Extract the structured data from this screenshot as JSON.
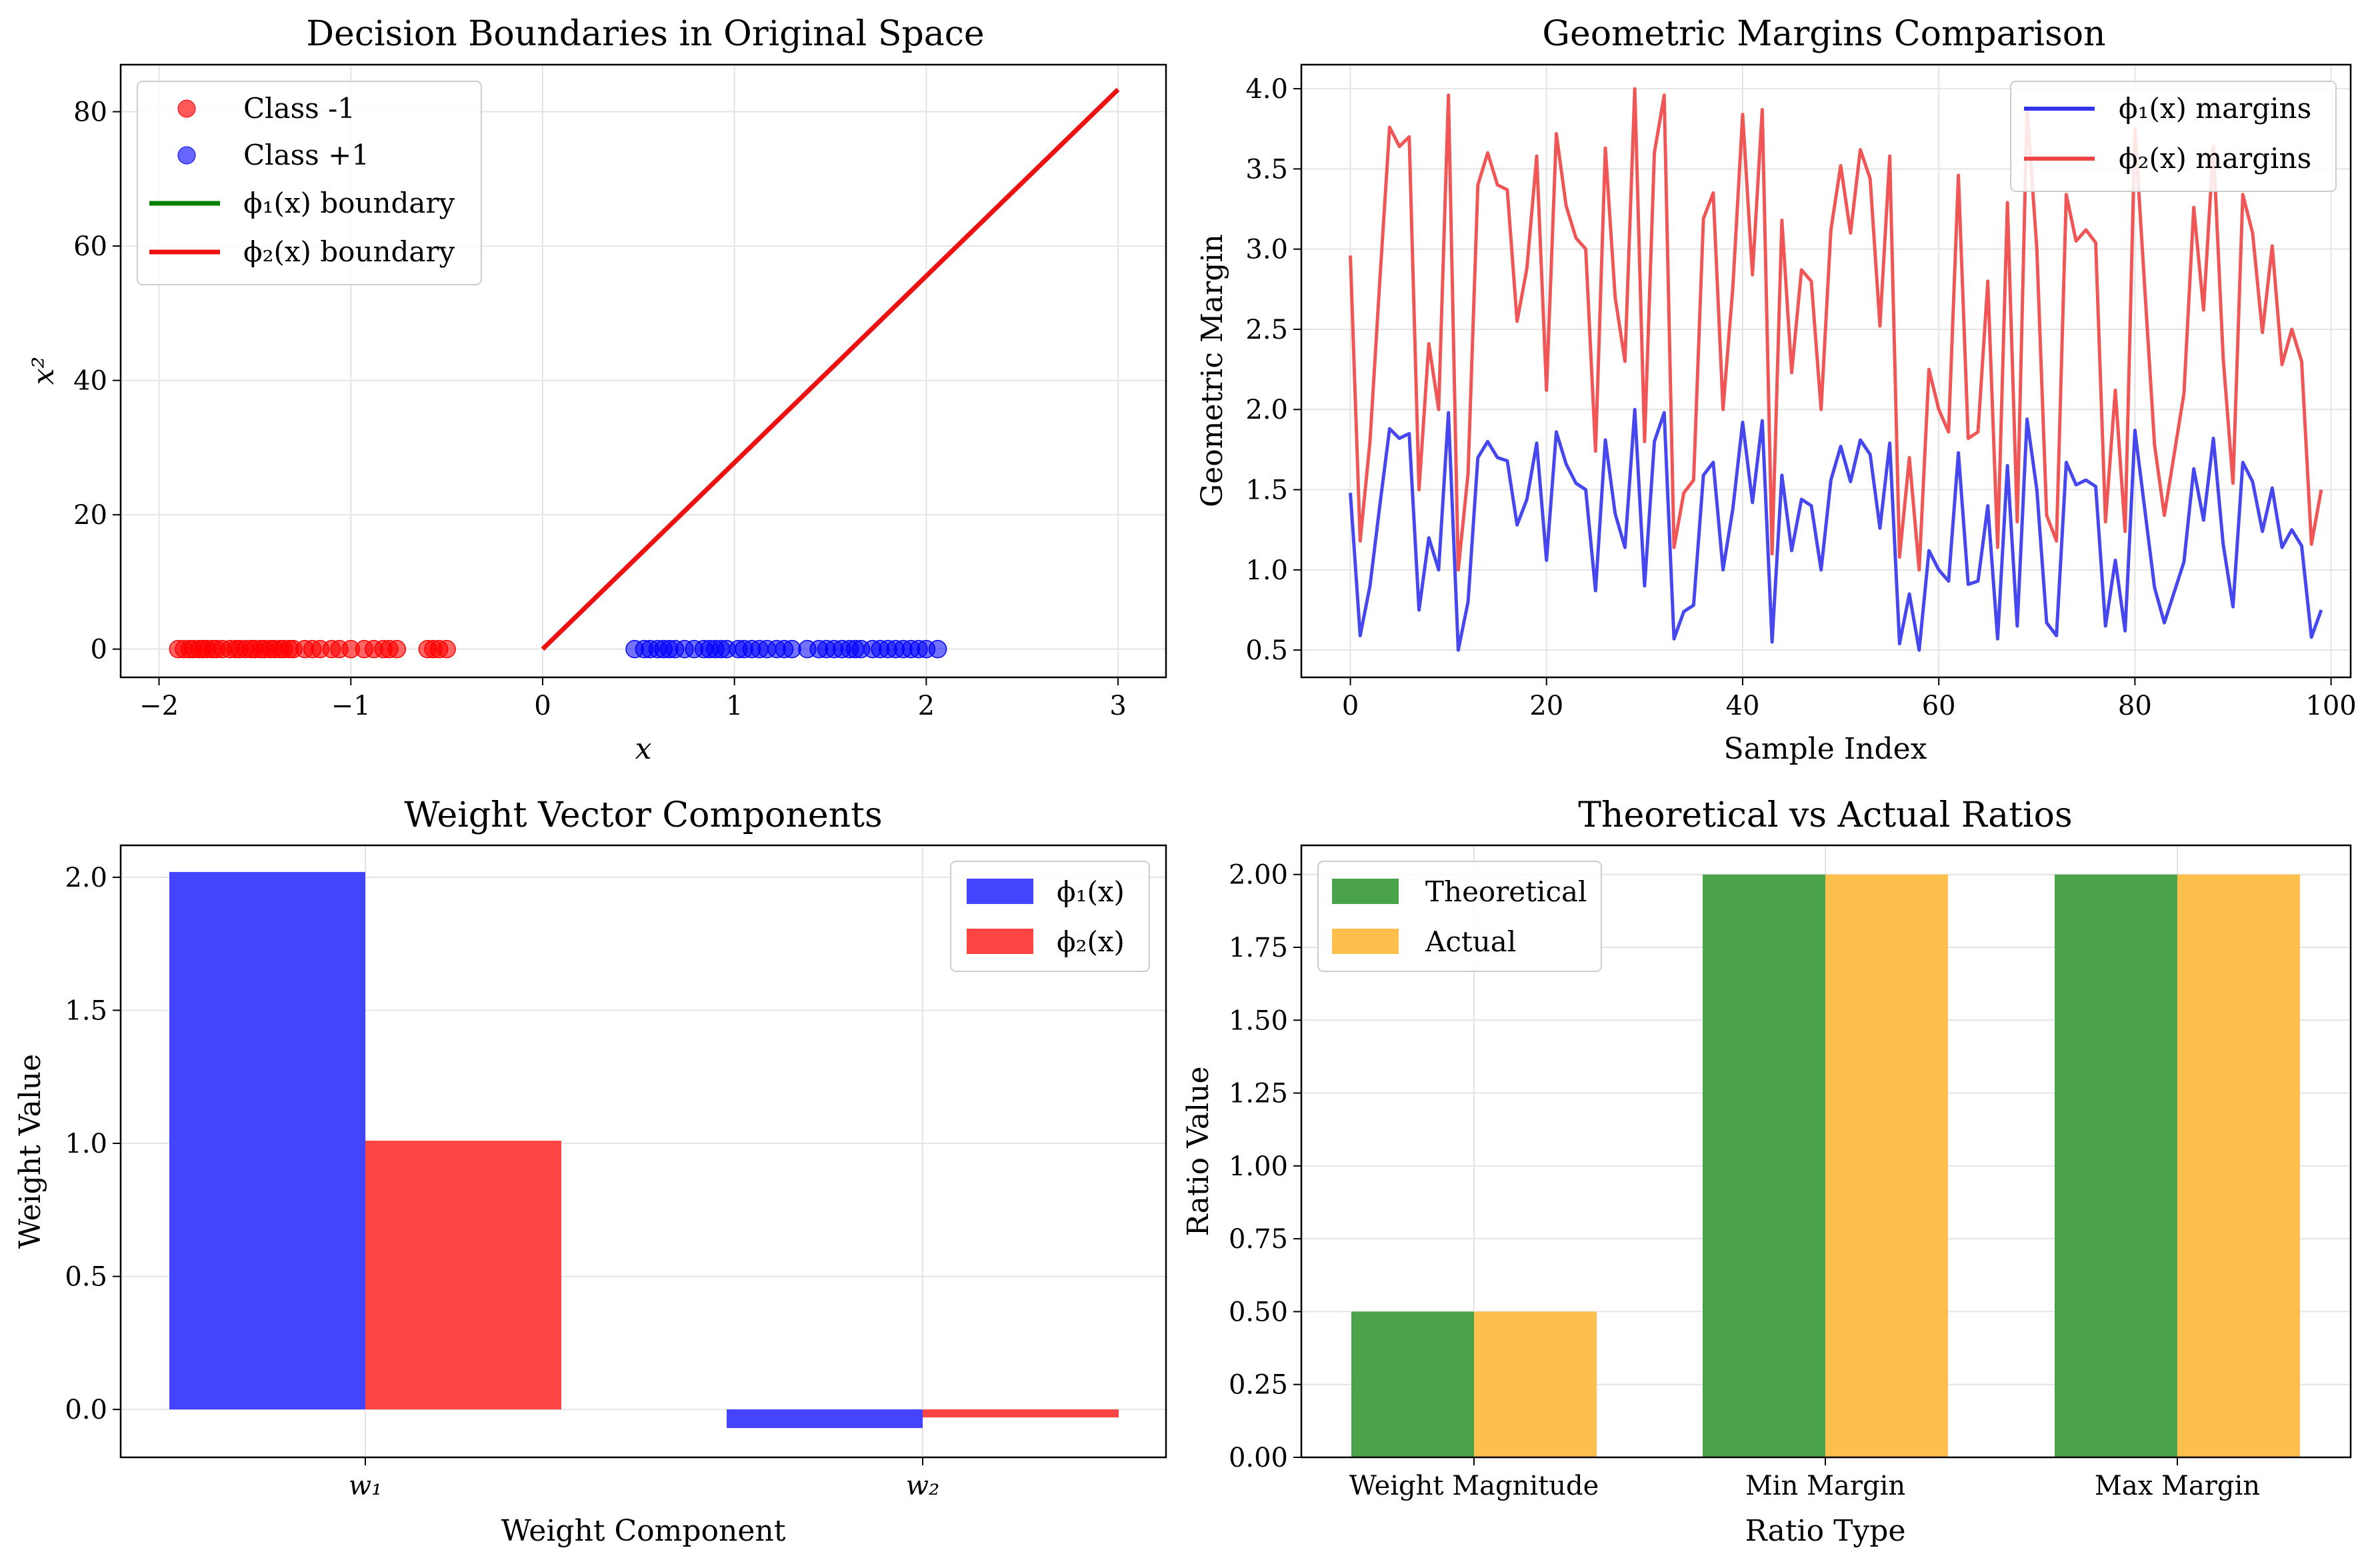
{
  "figure": {
    "panels": [
      {
        "id": "p1",
        "title": "Decision Boundaries in Original Space",
        "xlabel": "x",
        "ylabel": "x²",
        "xticks": [
          "−2",
          "−1",
          "0",
          "1",
          "2",
          "3"
        ],
        "yticks": [
          "0",
          "20",
          "40",
          "60",
          "80"
        ],
        "legend": [
          "Class -1",
          "Class +1",
          "ϕ₁(x) boundary",
          "ϕ₂(x) boundary"
        ]
      },
      {
        "id": "p2",
        "title": "Geometric Margins Comparison",
        "xlabel": "Sample Index",
        "ylabel": "Geometric Margin",
        "xticks": [
          "0",
          "20",
          "40",
          "60",
          "80",
          "100"
        ],
        "yticks": [
          "0.5",
          "1.0",
          "1.5",
          "2.0",
          "2.5",
          "3.0",
          "3.5",
          "4.0"
        ],
        "legend": [
          "ϕ₁(x) margins",
          "ϕ₂(x) margins"
        ]
      },
      {
        "id": "p3",
        "title": "Weight Vector Components",
        "xlabel": "Weight Component",
        "ylabel": "Weight Value",
        "xticks": [
          "w₁",
          "w₂"
        ],
        "yticks": [
          "0.0",
          "0.5",
          "1.0",
          "1.5",
          "2.0"
        ],
        "legend": [
          "ϕ₁(x)",
          "ϕ₂(x)"
        ]
      },
      {
        "id": "p4",
        "title": "Theoretical vs Actual Ratios",
        "xlabel": "Ratio Type",
        "ylabel": "Ratio Value",
        "xticks": [
          "Weight Magnitude",
          "Min Margin",
          "Max Margin"
        ],
        "yticks": [
          "0.00",
          "0.25",
          "0.50",
          "0.75",
          "1.00",
          "1.25",
          "1.50",
          "1.75",
          "2.00"
        ],
        "legend": [
          "Theoretical",
          "Actual"
        ]
      }
    ]
  },
  "chart_data": [
    {
      "type": "scatter",
      "title": "Decision Boundaries in Original Space",
      "xlabel": "x",
      "ylabel": "x²",
      "xlim": [
        -2.2,
        3.25
      ],
      "ylim": [
        -4.2,
        87
      ],
      "grid": true,
      "legend_position": "upper-left",
      "colors": {
        "neg": "#ff0000",
        "pos": "#0000ff",
        "phi1": "#008000",
        "phi2": "#ee1111"
      },
      "series": [
        {
          "name": "Class -1",
          "kind": "points",
          "x": [
            -1.9,
            -1.87,
            -1.84,
            -1.82,
            -1.79,
            -1.77,
            -1.75,
            -1.72,
            -1.7,
            -1.67,
            -1.63,
            -1.6,
            -1.58,
            -1.55,
            -1.52,
            -1.5,
            -1.47,
            -1.45,
            -1.42,
            -1.4,
            -1.37,
            -1.35,
            -1.32,
            -1.3,
            -1.24,
            -1.2,
            -1.16,
            -1.1,
            -1.06,
            -1.0,
            -0.93,
            -0.88,
            -0.83,
            -0.8,
            -0.76,
            -0.6,
            -0.57,
            -0.54,
            -0.5
          ],
          "y": [
            0,
            0,
            0,
            0,
            0,
            0,
            0,
            0,
            0,
            0,
            0,
            0,
            0,
            0,
            0,
            0,
            0,
            0,
            0,
            0,
            0,
            0,
            0,
            0,
            0,
            0,
            0,
            0,
            0,
            0,
            0,
            0,
            0,
            0,
            0,
            0,
            0,
            0,
            0
          ]
        },
        {
          "name": "Class +1",
          "kind": "points",
          "x": [
            0.48,
            0.53,
            0.56,
            0.6,
            0.63,
            0.66,
            0.69,
            0.74,
            0.79,
            0.84,
            0.87,
            0.9,
            0.93,
            0.96,
            1.02,
            1.05,
            1.09,
            1.13,
            1.17,
            1.22,
            1.26,
            1.3,
            1.38,
            1.44,
            1.48,
            1.52,
            1.56,
            1.6,
            1.63,
            1.66,
            1.72,
            1.76,
            1.8,
            1.84,
            1.88,
            1.92,
            1.96,
            2.0,
            2.06
          ],
          "y": [
            0,
            0,
            0,
            0,
            0,
            0,
            0,
            0,
            0,
            0,
            0,
            0,
            0,
            0,
            0,
            0,
            0,
            0,
            0,
            0,
            0,
            0,
            0,
            0,
            0,
            0,
            0,
            0,
            0,
            0,
            0,
            0,
            0,
            0,
            0,
            0,
            0,
            0,
            0
          ]
        },
        {
          "name": "ϕ₁(x) boundary",
          "kind": "line",
          "x": [],
          "y": []
        },
        {
          "name": "ϕ₂(x) boundary",
          "kind": "line",
          "x": [
            0,
            3
          ],
          "y": [
            0,
            83.3
          ]
        }
      ]
    },
    {
      "type": "line",
      "title": "Geometric Margins Comparison",
      "xlabel": "Sample Index",
      "ylabel": "Geometric Margin",
      "xlim": [
        -5,
        102
      ],
      "ylim": [
        0.33,
        4.15
      ],
      "grid": true,
      "legend_position": "upper-right",
      "colors": {
        "phi1": "#3333ee",
        "phi2": "#ee4444"
      },
      "series": [
        {
          "name": "ϕ₁(x) margins",
          "x": [
            0,
            1,
            2,
            3,
            4,
            5,
            6,
            7,
            8,
            9,
            10,
            11,
            12,
            13,
            14,
            15,
            16,
            17,
            18,
            19,
            20,
            21,
            22,
            23,
            24,
            25,
            26,
            27,
            28,
            29,
            30,
            31,
            32,
            33,
            34,
            35,
            36,
            37,
            38,
            39,
            40,
            41,
            42,
            43,
            44,
            45,
            46,
            47,
            48,
            49,
            50,
            51,
            52,
            53,
            54,
            55,
            56,
            57,
            58,
            59,
            60,
            61,
            62,
            63,
            64,
            65,
            66,
            67,
            68,
            69,
            70,
            71,
            72,
            73,
            74,
            75,
            76,
            77,
            78,
            79,
            80,
            81,
            82,
            83,
            84,
            85,
            86,
            87,
            88,
            89,
            90,
            91,
            92,
            93,
            94,
            95,
            96,
            97,
            98,
            99
          ],
          "values": [
            1.48,
            0.59,
            0.9,
            1.4,
            1.88,
            1.82,
            1.85,
            0.75,
            1.2,
            1.0,
            1.98,
            0.5,
            0.8,
            1.7,
            1.8,
            1.7,
            1.68,
            1.28,
            1.44,
            1.79,
            1.06,
            1.86,
            1.66,
            1.54,
            1.5,
            0.87,
            1.81,
            1.35,
            1.14,
            2.0,
            0.9,
            1.8,
            1.98,
            0.57,
            0.74,
            0.78,
            1.59,
            1.67,
            1.0,
            1.38,
            1.92,
            1.42,
            1.93,
            0.55,
            1.59,
            1.12,
            1.44,
            1.4,
            1.0,
            1.56,
            1.77,
            1.55,
            1.81,
            1.72,
            1.26,
            1.79,
            0.54,
            0.85,
            0.5,
            1.12,
            1.0,
            0.93,
            1.73,
            0.91,
            0.93,
            1.4,
            0.57,
            1.65,
            0.65,
            1.94,
            1.5,
            0.67,
            0.59,
            1.67,
            1.53,
            1.56,
            1.52,
            0.65,
            1.06,
            0.62,
            1.87,
            1.38,
            0.89,
            0.67,
            0.86,
            1.05,
            1.63,
            1.31,
            1.82,
            1.16,
            0.77,
            1.67,
            1.55,
            1.24,
            1.51,
            1.14,
            1.25,
            1.15,
            0.58,
            0.75
          ]
        },
        {
          "name": "ϕ₂(x) margins",
          "x": [
            0,
            1,
            2,
            3,
            4,
            5,
            6,
            7,
            8,
            9,
            10,
            11,
            12,
            13,
            14,
            15,
            16,
            17,
            18,
            19,
            20,
            21,
            22,
            23,
            24,
            25,
            26,
            27,
            28,
            29,
            30,
            31,
            32,
            33,
            34,
            35,
            36,
            37,
            38,
            39,
            40,
            41,
            42,
            43,
            44,
            45,
            46,
            47,
            48,
            49,
            50,
            51,
            52,
            53,
            54,
            55,
            56,
            57,
            58,
            59,
            60,
            61,
            62,
            63,
            64,
            65,
            66,
            67,
            68,
            69,
            70,
            71,
            72,
            73,
            74,
            75,
            76,
            77,
            78,
            79,
            80,
            81,
            82,
            83,
            84,
            85,
            86,
            87,
            88,
            89,
            90,
            91,
            92,
            93,
            94,
            95,
            96,
            97,
            98,
            99
          ],
          "values": [
            2.96,
            1.18,
            1.8,
            2.8,
            3.76,
            3.64,
            3.7,
            1.5,
            2.41,
            2.0,
            3.96,
            1.0,
            1.6,
            3.4,
            3.6,
            3.4,
            3.37,
            2.55,
            2.88,
            3.58,
            2.12,
            3.72,
            3.27,
            3.07,
            3.0,
            1.74,
            3.63,
            2.7,
            2.3,
            4.0,
            1.8,
            3.6,
            3.96,
            1.14,
            1.48,
            1.56,
            3.19,
            3.35,
            2.0,
            2.76,
            3.84,
            2.84,
            3.87,
            1.1,
            3.18,
            2.23,
            2.87,
            2.8,
            2.0,
            3.12,
            3.52,
            3.1,
            3.62,
            3.44,
            2.52,
            3.58,
            1.08,
            1.7,
            1.0,
            2.25,
            2.0,
            1.86,
            3.46,
            1.82,
            1.86,
            2.8,
            1.14,
            3.29,
            1.3,
            3.88,
            3.0,
            1.34,
            1.18,
            3.34,
            3.05,
            3.12,
            3.04,
            1.3,
            2.12,
            1.24,
            3.75,
            2.76,
            1.78,
            1.34,
            1.72,
            2.1,
            3.26,
            2.62,
            3.64,
            2.32,
            1.54,
            3.34,
            3.1,
            2.48,
            3.02,
            2.28,
            2.5,
            2.3,
            1.16,
            1.5
          ]
        }
      ]
    },
    {
      "type": "bar",
      "title": "Weight Vector Components",
      "xlabel": "Weight Component",
      "ylabel": "Weight Value",
      "categories": [
        "w₁",
        "w₂"
      ],
      "ylim": [
        -0.18,
        2.12
      ],
      "grid": true,
      "legend_position": "upper-right",
      "series": [
        {
          "name": "ϕ₁(x)",
          "color": "#4444ff",
          "values": [
            2.02,
            -0.07
          ]
        },
        {
          "name": "ϕ₂(x)",
          "color": "#ff4444",
          "values": [
            1.01,
            -0.03
          ]
        }
      ]
    },
    {
      "type": "bar",
      "title": "Theoretical vs Actual Ratios",
      "xlabel": "Ratio Type",
      "ylabel": "Ratio Value",
      "categories": [
        "Weight Magnitude",
        "Min Margin",
        "Max Margin"
      ],
      "ylim": [
        0,
        2.1
      ],
      "grid": true,
      "legend_position": "upper-left",
      "series": [
        {
          "name": "Theoretical",
          "color": "#4aa24a",
          "values": [
            0.5,
            2.0,
            2.0
          ]
        },
        {
          "name": "Actual",
          "color": "#ffbf4d",
          "values": [
            0.5,
            2.0,
            2.0
          ]
        }
      ]
    }
  ]
}
